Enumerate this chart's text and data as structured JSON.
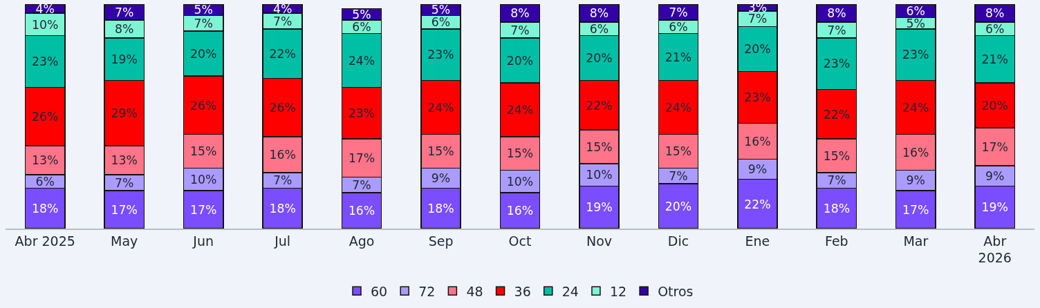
{
  "chart_data": {
    "type": "bar",
    "stacked": true,
    "legend": "bottom",
    "tick_labels": "x",
    "ylim": [
      0,
      100
    ],
    "categories": [
      "Abr 2025",
      "May",
      "Jun",
      "Jul",
      "Ago",
      "Sep",
      "Oct",
      "Nov",
      "Dic",
      "Ene",
      "Feb",
      "Mar",
      "Abr\n2026"
    ],
    "series": [
      {
        "name": "60",
        "color": "#7a4dff",
        "values": [
          18,
          17,
          17,
          18,
          16,
          18,
          16,
          19,
          20,
          22,
          18,
          17,
          19
        ],
        "value_labels": [
          "18%",
          "17%",
          "17%",
          "18%",
          "16%",
          "18%",
          "16%",
          "19%",
          "20%",
          "22%",
          "18%",
          "17%",
          "19%"
        ]
      },
      {
        "name": "72",
        "color": "#ac9bff",
        "values": [
          6,
          7,
          10,
          7,
          7,
          9,
          10,
          10,
          7,
          9,
          7,
          9,
          9
        ],
        "value_labels": [
          "6%",
          "7%",
          "10%",
          "7%",
          "7%",
          "9%",
          "10%",
          "10%",
          "7%",
          "9%",
          "7%",
          "9%",
          "9%"
        ]
      },
      {
        "name": "48",
        "color": "#ff7489",
        "values": [
          13,
          13,
          15,
          16,
          17,
          15,
          15,
          15,
          15,
          16,
          15,
          16,
          17
        ],
        "value_labels": [
          "13%",
          "13%",
          "15%",
          "16%",
          "17%",
          "15%",
          "15%",
          "15%",
          "15%",
          "16%",
          "15%",
          "16%",
          "17%"
        ]
      },
      {
        "name": "36",
        "color": "#ff0000",
        "values": [
          26,
          29,
          26,
          26,
          23,
          24,
          24,
          22,
          24,
          23,
          22,
          24,
          20
        ],
        "value_labels": [
          "26%",
          "29%",
          "26%",
          "26%",
          "23%",
          "24%",
          "24%",
          "22%",
          "24%",
          "23%",
          "22%",
          "24%",
          "20%"
        ]
      },
      {
        "name": "24",
        "color": "#00bfa5",
        "values": [
          23,
          19,
          20,
          22,
          24,
          23,
          20,
          20,
          21,
          20,
          23,
          23,
          21
        ],
        "value_labels": [
          "23%",
          "19%",
          "20%",
          "22%",
          "24%",
          "23%",
          "20%",
          "20%",
          "21%",
          "20%",
          "23%",
          "23%",
          "21%"
        ]
      },
      {
        "name": "12",
        "color": "#7df5d5",
        "values": [
          10,
          8,
          7,
          7,
          6,
          6,
          7,
          6,
          6,
          7,
          7,
          5,
          6
        ],
        "value_labels": [
          "10%",
          "8%",
          "7%",
          "7%",
          "6%",
          "6%",
          "7%",
          "6%",
          "6%",
          "7%",
          "7%",
          "5%",
          "6%"
        ]
      },
      {
        "name": "Otros",
        "color": "#3300a8",
        "values": [
          4,
          7,
          5,
          4,
          5,
          5,
          8,
          8,
          7,
          3,
          8,
          6,
          8
        ],
        "value_labels": [
          "4%",
          "7%",
          "5%",
          "4%",
          "5%",
          "5%",
          "8%",
          "8%",
          "7%",
          "3%",
          "8%",
          "6%",
          "8%"
        ]
      }
    ]
  }
}
